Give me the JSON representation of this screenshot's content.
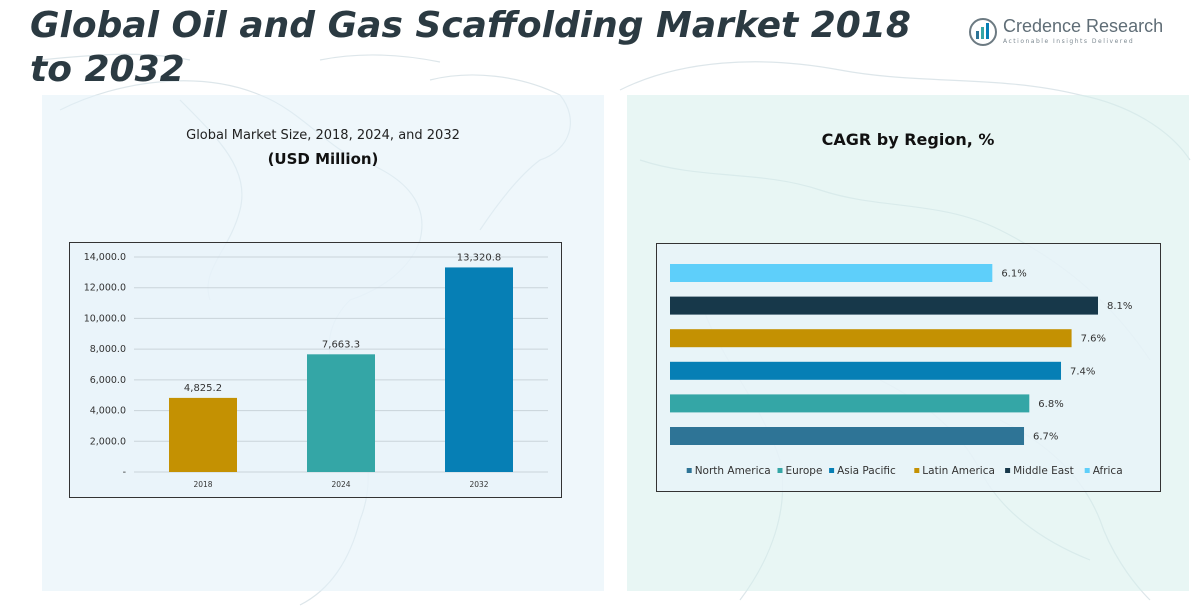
{
  "header": {
    "title": "Global Oil and Gas Scaffolding Market 2018 to 2032",
    "logo_name": "Credence Research",
    "logo_tagline": "Actionable Insights Delivered"
  },
  "left_panel": {
    "title": "Global Market Size, 2018, 2024, and 2032",
    "subtitle": "(USD Million)"
  },
  "right_panel": {
    "title": "CAGR by Region, %"
  },
  "colors": {
    "north_america": "#2e7496",
    "europe": "#34a6a6",
    "asia_pacific": "#067fb5",
    "latin_america": "#c49102",
    "middle_east": "#17384a",
    "africa": "#5ecffa"
  },
  "chart_data": [
    {
      "type": "bar",
      "categories": [
        "2018",
        "2024",
        "2032"
      ],
      "values": [
        4825.2,
        7663.3,
        13320.8
      ],
      "value_labels": [
        "4,825.2",
        "7,663.3",
        "13,320.8"
      ],
      "bar_colors": [
        "#c49102",
        "#34a6a6",
        "#067fb5"
      ],
      "yticks": [
        0,
        2000,
        4000,
        6000,
        8000,
        10000,
        12000,
        14000
      ],
      "ytick_labels": [
        "-",
        "2,000.0",
        "4,000.0",
        "6,000.0",
        "8,000.0",
        "10,000.0",
        "12,000.0",
        "14,000.0"
      ],
      "ylim": [
        0,
        14000
      ],
      "grid": true
    },
    {
      "type": "bar",
      "orientation": "horizontal",
      "categories": [
        "Africa",
        "Middle East",
        "Latin America",
        "Asia Pacific",
        "Europe",
        "North America"
      ],
      "values": [
        6.1,
        8.1,
        7.6,
        7.4,
        6.8,
        6.7
      ],
      "value_labels": [
        "6.1%",
        "8.1%",
        "7.6%",
        "7.4%",
        "6.8%",
        "6.7%"
      ],
      "bar_colors": [
        "#5ecffa",
        "#17384a",
        "#c49102",
        "#067fb5",
        "#34a6a6",
        "#2e7496"
      ],
      "legend": [
        "North America",
        "Europe",
        "Asia Pacific",
        "Latin America",
        "Middle East",
        "Africa"
      ],
      "legend_colors": [
        "#2e7496",
        "#34a6a6",
        "#067fb5",
        "#c49102",
        "#17384a",
        "#5ecffa"
      ],
      "legend_position": "bottom",
      "xlim": [
        0,
        8.1
      ]
    }
  ]
}
